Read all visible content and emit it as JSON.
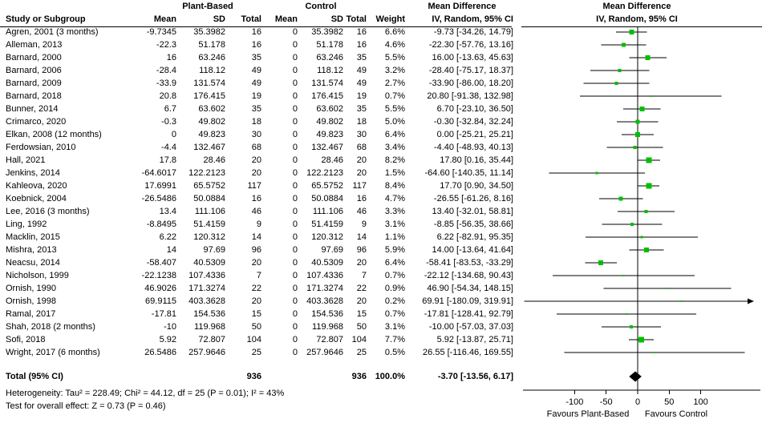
{
  "chart_data": {
    "type": "forest",
    "group1_header": "Plant-Based",
    "group2_header": "Control",
    "effect_header": "Mean Difference",
    "method_header": "IV, Random, 95% CI",
    "columns": {
      "study": "Study or Subgroup",
      "mean": "Mean",
      "sd": "SD",
      "total": "Total",
      "weight": "Weight"
    },
    "studies": [
      {
        "name": "Agren, 2001 (3 months)",
        "mean1": "-9.7345",
        "sd1": "35.3982",
        "n1": "16",
        "mean2": "0",
        "sd2": "35.3982",
        "n2": "16",
        "weight": "6.6%",
        "ci": "-9.73 [-34.26, 14.79]"
      },
      {
        "name": "Alleman, 2013",
        "mean1": "-22.3",
        "sd1": "51.178",
        "n1": "16",
        "mean2": "0",
        "sd2": "51.178",
        "n2": "16",
        "weight": "4.6%",
        "ci": "-22.30 [-57.76, 13.16]"
      },
      {
        "name": "Barnard, 2000",
        "mean1": "16",
        "sd1": "63.246",
        "n1": "35",
        "mean2": "0",
        "sd2": "63.246",
        "n2": "35",
        "weight": "5.5%",
        "ci": "16.00 [-13.63, 45.63]"
      },
      {
        "name": "Barnard, 2006",
        "mean1": "-28.4",
        "sd1": "118.12",
        "n1": "49",
        "mean2": "0",
        "sd2": "118.12",
        "n2": "49",
        "weight": "3.2%",
        "ci": "-28.40 [-75.17, 18.37]"
      },
      {
        "name": "Barnard, 2009",
        "mean1": "-33.9",
        "sd1": "131.574",
        "n1": "49",
        "mean2": "0",
        "sd2": "131.574",
        "n2": "49",
        "weight": "2.7%",
        "ci": "-33.90 [-86.00, 18.20]"
      },
      {
        "name": "Barnard, 2018",
        "mean1": "20.8",
        "sd1": "176.415",
        "n1": "19",
        "mean2": "0",
        "sd2": "176.415",
        "n2": "19",
        "weight": "0.7%",
        "ci": "20.80 [-91.38, 132.98]"
      },
      {
        "name": "Bunner, 2014",
        "mean1": "6.7",
        "sd1": "63.602",
        "n1": "35",
        "mean2": "0",
        "sd2": "63.602",
        "n2": "35",
        "weight": "5.5%",
        "ci": "6.70 [-23.10, 36.50]"
      },
      {
        "name": "Crimarco, 2020",
        "mean1": "-0.3",
        "sd1": "49.802",
        "n1": "18",
        "mean2": "0",
        "sd2": "49.802",
        "n2": "18",
        "weight": "5.0%",
        "ci": "-0.30 [-32.84, 32.24]"
      },
      {
        "name": "Elkan, 2008 (12 months)",
        "mean1": "0",
        "sd1": "49.823",
        "n1": "30",
        "mean2": "0",
        "sd2": "49.823",
        "n2": "30",
        "weight": "6.4%",
        "ci": "0.00 [-25.21, 25.21]"
      },
      {
        "name": "Ferdowsian, 2010",
        "mean1": "-4.4",
        "sd1": "132.467",
        "n1": "68",
        "mean2": "0",
        "sd2": "132.467",
        "n2": "68",
        "weight": "3.4%",
        "ci": "-4.40 [-48.93, 40.13]"
      },
      {
        "name": "Hall, 2021",
        "mean1": "17.8",
        "sd1": "28.46",
        "n1": "20",
        "mean2": "0",
        "sd2": "28.46",
        "n2": "20",
        "weight": "8.2%",
        "ci": "17.80 [0.16, 35.44]"
      },
      {
        "name": "Jenkins, 2014",
        "mean1": "-64.6017",
        "sd1": "122.2123",
        "n1": "20",
        "mean2": "0",
        "sd2": "122.2123",
        "n2": "20",
        "weight": "1.5%",
        "ci": "-64.60 [-140.35, 11.14]"
      },
      {
        "name": "Kahleova, 2020",
        "mean1": "17.6991",
        "sd1": "65.5752",
        "n1": "117",
        "mean2": "0",
        "sd2": "65.5752",
        "n2": "117",
        "weight": "8.4%",
        "ci": "17.70 [0.90, 34.50]"
      },
      {
        "name": "Koebnick, 2004",
        "mean1": "-26.5486",
        "sd1": "50.0884",
        "n1": "16",
        "mean2": "0",
        "sd2": "50.0884",
        "n2": "16",
        "weight": "4.7%",
        "ci": "-26.55 [-61.26, 8.16]"
      },
      {
        "name": "Lee, 2016 (3 months)",
        "mean1": "13.4",
        "sd1": "111.106",
        "n1": "46",
        "mean2": "0",
        "sd2": "111.106",
        "n2": "46",
        "weight": "3.3%",
        "ci": "13.40 [-32.01, 58.81]"
      },
      {
        "name": "Ling, 1992",
        "mean1": "-8.8495",
        "sd1": "51.4159",
        "n1": "9",
        "mean2": "0",
        "sd2": "51.4159",
        "n2": "9",
        "weight": "3.1%",
        "ci": "-8.85 [-56.35, 38.66]"
      },
      {
        "name": "Macklin, 2015",
        "mean1": "6.22",
        "sd1": "120.312",
        "n1": "14",
        "mean2": "0",
        "sd2": "120.312",
        "n2": "14",
        "weight": "1.1%",
        "ci": "6.22 [-82.91, 95.35]"
      },
      {
        "name": "Mishra, 2013",
        "mean1": "14",
        "sd1": "97.69",
        "n1": "96",
        "mean2": "0",
        "sd2": "97.69",
        "n2": "96",
        "weight": "5.9%",
        "ci": "14.00 [-13.64, 41.64]"
      },
      {
        "name": "Neacsu, 2014",
        "mean1": "-58.407",
        "sd1": "40.5309",
        "n1": "20",
        "mean2": "0",
        "sd2": "40.5309",
        "n2": "20",
        "weight": "6.4%",
        "ci": "-58.41 [-83.53, -33.29]"
      },
      {
        "name": "Nicholson, 1999",
        "mean1": "-22.1238",
        "sd1": "107.4336",
        "n1": "7",
        "mean2": "0",
        "sd2": "107.4336",
        "n2": "7",
        "weight": "0.7%",
        "ci": "-22.12 [-134.68, 90.43]"
      },
      {
        "name": "Ornish, 1990",
        "mean1": "46.9026",
        "sd1": "171.3274",
        "n1": "22",
        "mean2": "0",
        "sd2": "171.3274",
        "n2": "22",
        "weight": "0.9%",
        "ci": "46.90 [-54.34, 148.15]"
      },
      {
        "name": "Ornish, 1998",
        "mean1": "69.9115",
        "sd1": "403.3628",
        "n1": "20",
        "mean2": "0",
        "sd2": "403.3628",
        "n2": "20",
        "weight": "0.2%",
        "ci": "69.91 [-180.09, 319.91]"
      },
      {
        "name": "Ramal, 2017",
        "mean1": "-17.81",
        "sd1": "154.536",
        "n1": "15",
        "mean2": "0",
        "sd2": "154.536",
        "n2": "15",
        "weight": "0.7%",
        "ci": "-17.81 [-128.41, 92.79]"
      },
      {
        "name": "Shah, 2018 (2 months)",
        "mean1": "-10",
        "sd1": "119.968",
        "n1": "50",
        "mean2": "0",
        "sd2": "119.968",
        "n2": "50",
        "weight": "3.1%",
        "ci": "-10.00 [-57.03, 37.03]"
      },
      {
        "name": "Sofi, 2018",
        "mean1": "5.92",
        "sd1": "72.807",
        "n1": "104",
        "mean2": "0",
        "sd2": "72.807",
        "n2": "104",
        "weight": "7.7%",
        "ci": "5.92 [-13.87, 25.71]"
      },
      {
        "name": "Wright, 2017 (6 months)",
        "mean1": "26.5486",
        "sd1": "257.9646",
        "n1": "25",
        "mean2": "0",
        "sd2": "257.9646",
        "n2": "25",
        "weight": "0.5%",
        "ci": "26.55 [-116.46, 169.55]"
      }
    ],
    "total": {
      "label": "Total (95% CI)",
      "n1": "936",
      "n2": "936",
      "weight": "100.0%",
      "ci": "-3.70 [-13.56, 6.17]"
    },
    "heterogeneity": "Heterogeneity: Tau² = 228.49; Chi² = 44.12, df = 25 (P = 0.01); I² = 43%",
    "overall_effect": "Test for overall effect: Z = 0.73 (P = 0.46)",
    "axis": {
      "ticks": [
        -100,
        -50,
        0,
        50,
        100
      ],
      "min": -185,
      "max": 185,
      "favours_left": "Favours Plant-Based",
      "favours_right": "Favours Control"
    },
    "marker_color": "#00bf00",
    "line_color": "#000000"
  }
}
